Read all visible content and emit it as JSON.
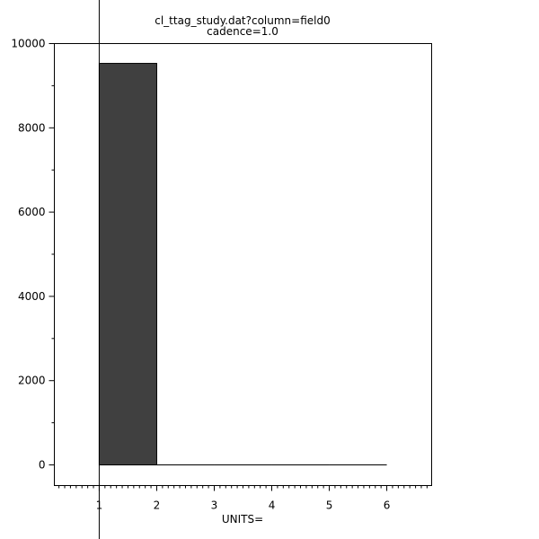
{
  "chart_data": {
    "type": "bar",
    "title": "cl_ttag_study.dat?column=field0",
    "subtitle": "cadence=1.0",
    "xlabel": "UNITS=",
    "ylabel": "",
    "bins": [
      {
        "x0": 1,
        "x1": 2,
        "value": 9530
      },
      {
        "x0": 2,
        "x1": 3,
        "value": 0
      },
      {
        "x0": 3,
        "x1": 4,
        "value": 0
      },
      {
        "x0": 4,
        "x1": 5,
        "value": 0
      },
      {
        "x0": 5,
        "x1": 6,
        "value": 0
      }
    ],
    "xlim": [
      0.22,
      6.78
    ],
    "ylim": [
      -490,
      10000
    ],
    "xticks": [
      "1",
      "2",
      "3",
      "4",
      "5",
      "6"
    ],
    "yticks": [
      "0",
      "2000",
      "4000",
      "6000",
      "8000",
      "10000"
    ],
    "x_minor_step": 0.1,
    "y_minor_step": 1000,
    "cursor_x": 1,
    "grid": false,
    "bar_color": "#404040"
  }
}
